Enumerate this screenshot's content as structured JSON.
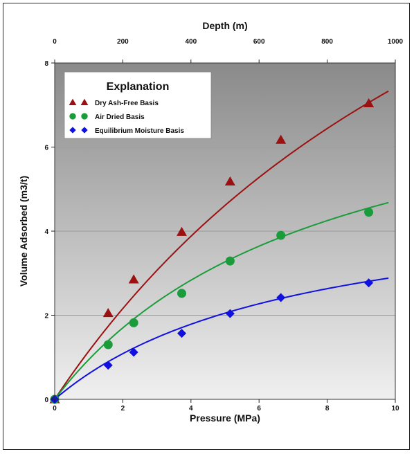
{
  "chart_data": {
    "type": "scatter",
    "xlabel": "Pressure (MPa)",
    "ylabel": "Volume Adsorbed (m3/t)",
    "top_xlabel": "Depth (m)",
    "xlim": [
      0,
      10
    ],
    "ylim": [
      0,
      8
    ],
    "top_xlim": [
      0,
      1000
    ],
    "x_ticks": [
      0,
      2,
      4,
      6,
      8,
      10
    ],
    "y_ticks": [
      0,
      2,
      4,
      6,
      8
    ],
    "top_ticks": [
      0,
      200,
      400,
      600,
      800,
      1000
    ],
    "grid": "horizontal",
    "background": "gradient dark gray (top) to light gray (bottom)",
    "legend": {
      "title": "Explanation",
      "placement": "top-left",
      "entries": [
        {
          "label": "Dry Ash-Free Basis",
          "marker": "triangle",
          "color": "#9b1111"
        },
        {
          "label": "Air Dried Basis",
          "marker": "circle",
          "color": "#1a9c3a"
        },
        {
          "label": "Equilibrium Moisture Basis",
          "marker": "diamond",
          "color": "#1010e0"
        }
      ]
    },
    "series": [
      {
        "name": "Dry Ash-Free Basis",
        "marker": "triangle",
        "color": "#9b1111",
        "points": [
          [
            0,
            0
          ],
          [
            1.57,
            2.05
          ],
          [
            2.32,
            2.85
          ],
          [
            3.73,
            3.98
          ],
          [
            5.15,
            5.18
          ],
          [
            6.64,
            6.17
          ],
          [
            9.22,
            7.04
          ]
        ],
        "curve": {
          "vl": 19.0,
          "pl": 15.6
        }
      },
      {
        "name": "Air Dried Basis",
        "marker": "circle",
        "color": "#1a9c3a",
        "points": [
          [
            0,
            0
          ],
          [
            1.57,
            1.3
          ],
          [
            2.32,
            1.82
          ],
          [
            3.73,
            2.52
          ],
          [
            5.15,
            3.29
          ],
          [
            6.64,
            3.9
          ],
          [
            9.22,
            4.45
          ]
        ],
        "curve": {
          "vl": 8.5,
          "pl": 8.0
        }
      },
      {
        "name": "Equilibrium Moisture Basis",
        "marker": "diamond",
        "color": "#1010e0",
        "points": [
          [
            0,
            0
          ],
          [
            1.57,
            0.81
          ],
          [
            2.32,
            1.12
          ],
          [
            3.73,
            1.57
          ],
          [
            5.15,
            2.04
          ],
          [
            6.64,
            2.42
          ],
          [
            9.22,
            2.77
          ]
        ],
        "curve": {
          "vl": 5.0,
          "pl": 7.2
        }
      }
    ]
  }
}
